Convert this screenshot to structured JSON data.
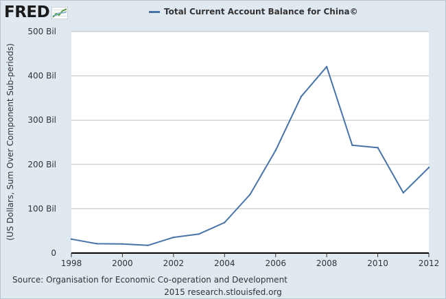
{
  "logo": {
    "text": "FRED",
    "icon": "chart-line-icon"
  },
  "colors": {
    "series": "#4572a7",
    "plot_bg": "#ffffff",
    "page_bg": "#e1e9f0",
    "grid": "#c0c0c0"
  },
  "chart_data": {
    "type": "line",
    "title": "",
    "series": [
      {
        "name": "Total Current Account Balance for China©",
        "x": [
          1998,
          1999,
          2000,
          2001,
          2002,
          2003,
          2004,
          2005,
          2006,
          2007,
          2008,
          2009,
          2010,
          2011,
          2012
        ],
        "values": [
          31.5,
          21.1,
          20.5,
          17.4,
          35.4,
          43.1,
          68.9,
          132.4,
          231.8,
          353.2,
          420.6,
          243.3,
          237.8,
          136.1,
          193.1
        ]
      }
    ],
    "xlabel": "",
    "ylabel": "(US Dollars, Sum Over Component Sub-periods)",
    "xlim": [
      1998,
      2012
    ],
    "ylim": [
      0,
      500
    ],
    "xticks": [
      1998,
      2000,
      2002,
      2004,
      2006,
      2008,
      2010,
      2012
    ],
    "yticks": [
      {
        "value": 0,
        "label": "0"
      },
      {
        "value": 100,
        "label": "100 Bil"
      },
      {
        "value": 200,
        "label": "200 Bil"
      },
      {
        "value": 300,
        "label": "300 Bil"
      },
      {
        "value": 400,
        "label": "400 Bil"
      },
      {
        "value": 500,
        "label": "500 Bil"
      }
    ],
    "grid": true,
    "legend": "top-center"
  },
  "footer": {
    "source": "Source: Organisation for Economic Co-operation and Development",
    "credit": "2015 research.stlouisfed.org"
  }
}
